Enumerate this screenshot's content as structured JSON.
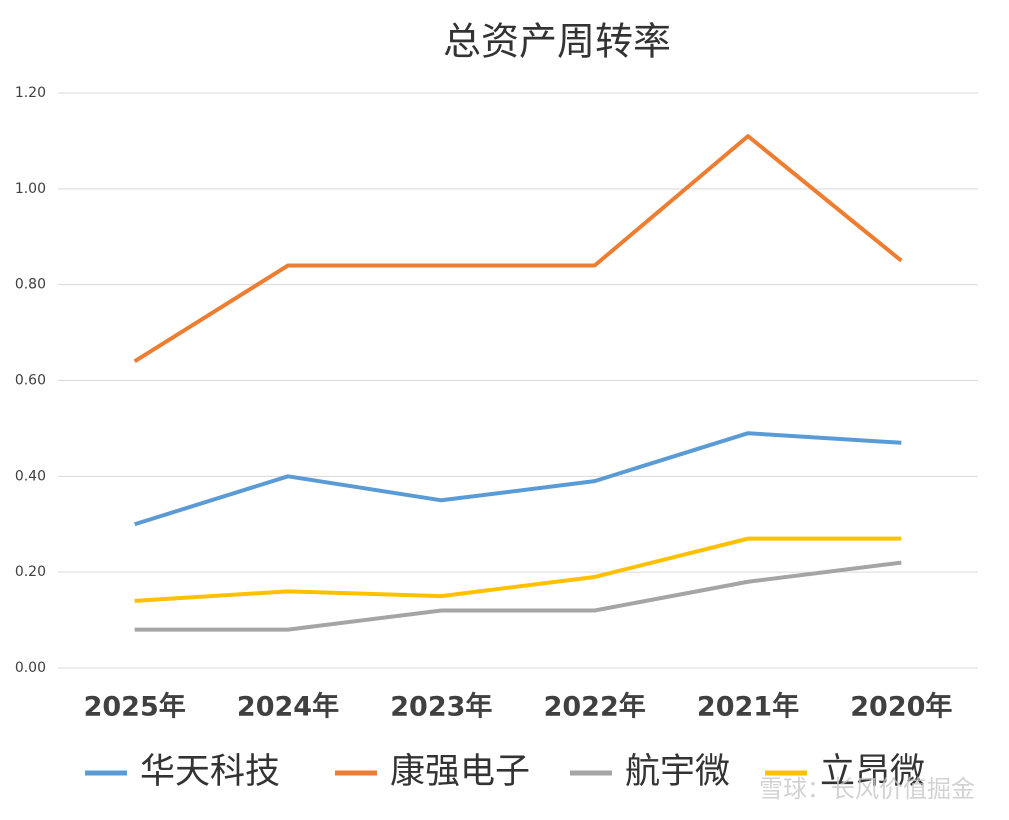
{
  "chart_data": {
    "type": "line",
    "title": "总资产周转率",
    "categories": [
      "2025年",
      "2024年",
      "2023年",
      "2022年",
      "2021年",
      "2020年"
    ],
    "series": [
      {
        "name": "华天科技",
        "color": "#5b9bd5",
        "values": [
          0.3,
          0.4,
          0.35,
          0.39,
          0.49,
          0.47
        ]
      },
      {
        "name": "康强电子",
        "color": "#ed7d31",
        "values": [
          0.64,
          0.84,
          0.84,
          0.84,
          1.11,
          0.85
        ]
      },
      {
        "name": "航宇微",
        "color": "#a5a5a5",
        "values": [
          0.08,
          0.08,
          0.12,
          0.12,
          0.18,
          0.22
        ]
      },
      {
        "name": "立昂微",
        "color": "#ffc000",
        "values": [
          0.14,
          0.16,
          0.15,
          0.19,
          0.27,
          0.27
        ]
      }
    ],
    "ylim": [
      0,
      1.2
    ],
    "yticks": [
      {
        "value": 0,
        "label": "0.00"
      },
      {
        "value": 0.2,
        "label": "0.20"
      },
      {
        "value": 0.4,
        "label": "0.40"
      },
      {
        "value": 0.6,
        "label": "0.60"
      },
      {
        "value": 0.8,
        "label": "0.80"
      },
      {
        "value": 1.0,
        "label": "1.00"
      },
      {
        "value": 1.2,
        "label": "1.20"
      }
    ],
    "grid": true,
    "legend": "bottom",
    "watermark": "雪球：长风价值掘金"
  }
}
